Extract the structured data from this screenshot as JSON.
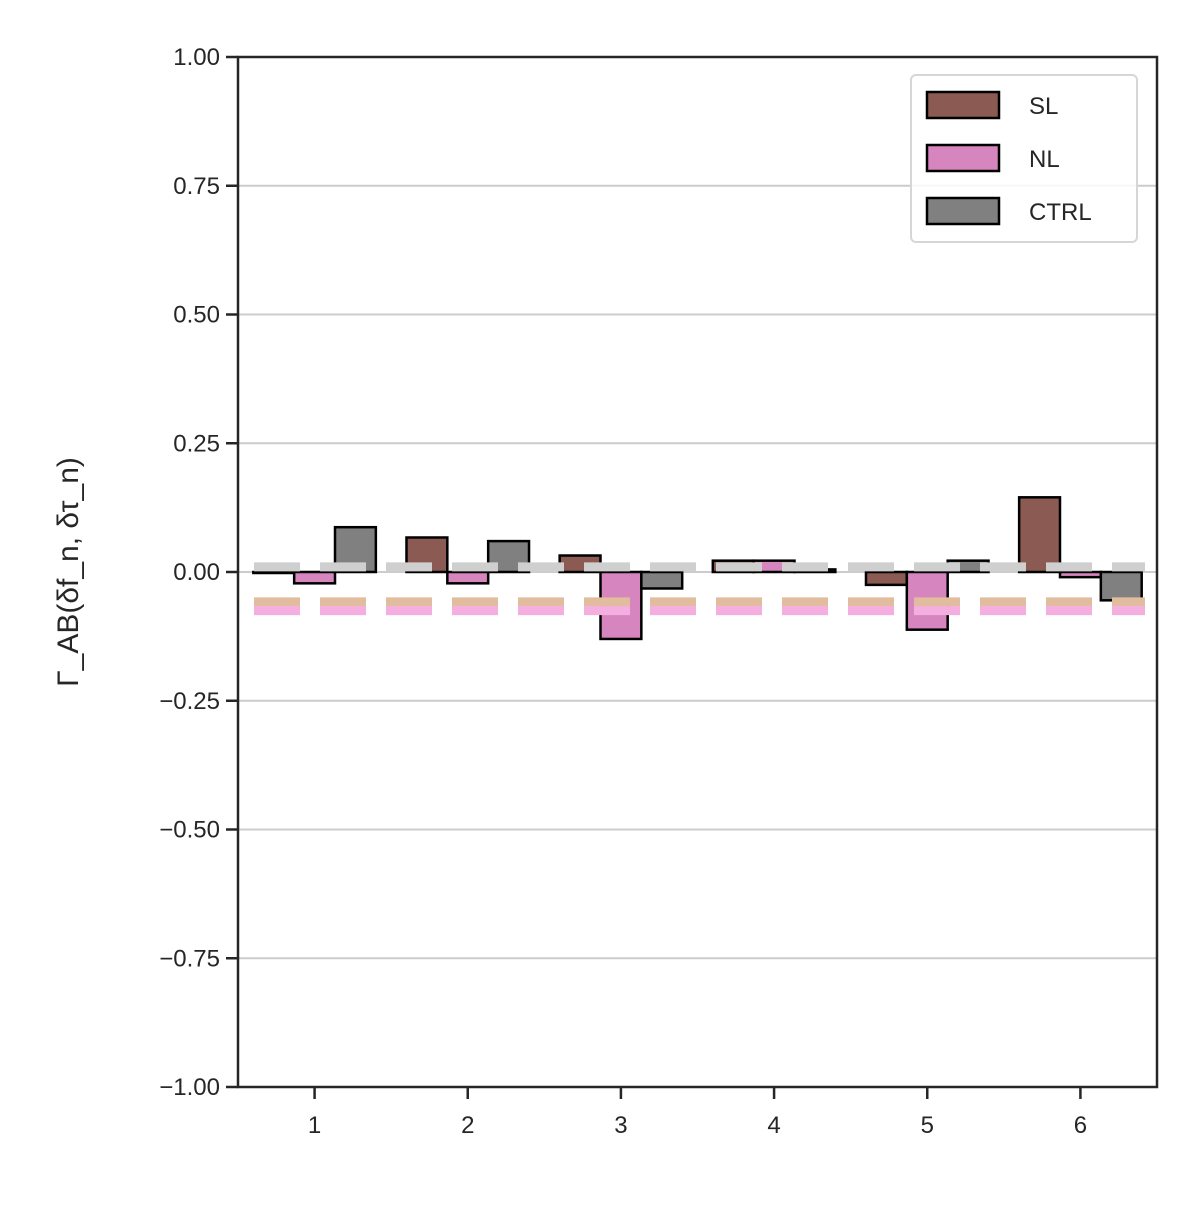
{
  "chart_data": {
    "type": "bar",
    "title": "",
    "xlabel": "",
    "ylabel": "Γ_AB(δf_n, δτ_n)",
    "categories": [
      "1",
      "2",
      "3",
      "4",
      "5",
      "6"
    ],
    "ylim": [
      -1.0,
      1.0
    ],
    "yticks": [
      "−1.00",
      "−0.75",
      "−0.50",
      "−0.25",
      "0.00",
      "0.25",
      "0.50",
      "0.75",
      "1.00"
    ],
    "ytick_values": [
      -1.0,
      -0.75,
      -0.5,
      -0.25,
      0.0,
      0.25,
      0.5,
      0.75,
      1.0
    ],
    "grid": "y",
    "legend_position": "top-right",
    "series": [
      {
        "name": "SL",
        "color": "#8b5a52",
        "values": [
          0.0,
          0.067,
          0.032,
          0.022,
          -0.025,
          0.145
        ]
      },
      {
        "name": "NL",
        "color": "#d685be",
        "values": [
          -0.022,
          -0.022,
          -0.13,
          0.022,
          -0.112,
          -0.01
        ]
      },
      {
        "name": "CTRL",
        "color": "#808080",
        "values": [
          0.087,
          0.06,
          -0.032,
          0.005,
          0.022,
          -0.055
        ]
      }
    ],
    "reference_lines": [
      {
        "series": "SL",
        "color": "#e1bc9e",
        "value": -0.058,
        "style": "dashed"
      },
      {
        "series": "NL",
        "color": "#f5aee0",
        "value": -0.075,
        "style": "dashed"
      },
      {
        "series": "CTRL",
        "color": "#cfcfcf",
        "value": 0.01,
        "style": "dashed"
      }
    ]
  }
}
